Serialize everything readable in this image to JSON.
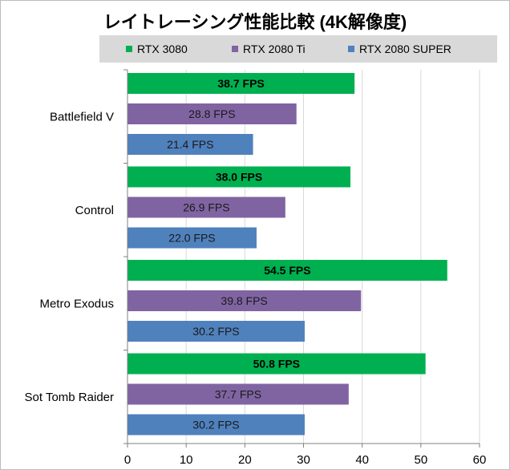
{
  "chart_data": {
    "type": "bar",
    "orientation": "horizontal",
    "title": "レイトレーシング性能比較 (4K解像度)",
    "categories": [
      "Battlefield V",
      "Control",
      "Metro Exodus",
      "Sot Tomb Raider"
    ],
    "series": [
      {
        "name": "RTX 3080",
        "color": "#00b050",
        "values": [
          38.7,
          38.0,
          54.5,
          50.8
        ],
        "labels": [
          "38.7 FPS",
          "38.0 FPS",
          "54.5 FPS",
          "50.8 FPS"
        ],
        "label_bold": true
      },
      {
        "name": "RTX 2080 Ti",
        "color": "#8064a2",
        "values": [
          28.8,
          26.9,
          39.8,
          37.7
        ],
        "labels": [
          "28.8 FPS",
          "26.9 FPS",
          "39.8 FPS",
          "37.7 FPS"
        ],
        "label_bold": false
      },
      {
        "name": "RTX 2080 SUPER",
        "color": "#4f81bd",
        "values": [
          21.4,
          22.0,
          30.2,
          30.2
        ],
        "labels": [
          "21.4 FPS",
          "22.0 FPS",
          "30.2 FPS",
          "30.2 FPS"
        ],
        "label_bold": false
      }
    ],
    "xlim": [
      0,
      60
    ],
    "xticks": [
      0,
      10,
      20,
      30,
      40,
      50,
      60
    ],
    "grid": true,
    "legend_position": "top"
  },
  "colors": {
    "legend_background": "#d9d9d9",
    "grid": "#d9d9d9",
    "axis": "#808080"
  }
}
